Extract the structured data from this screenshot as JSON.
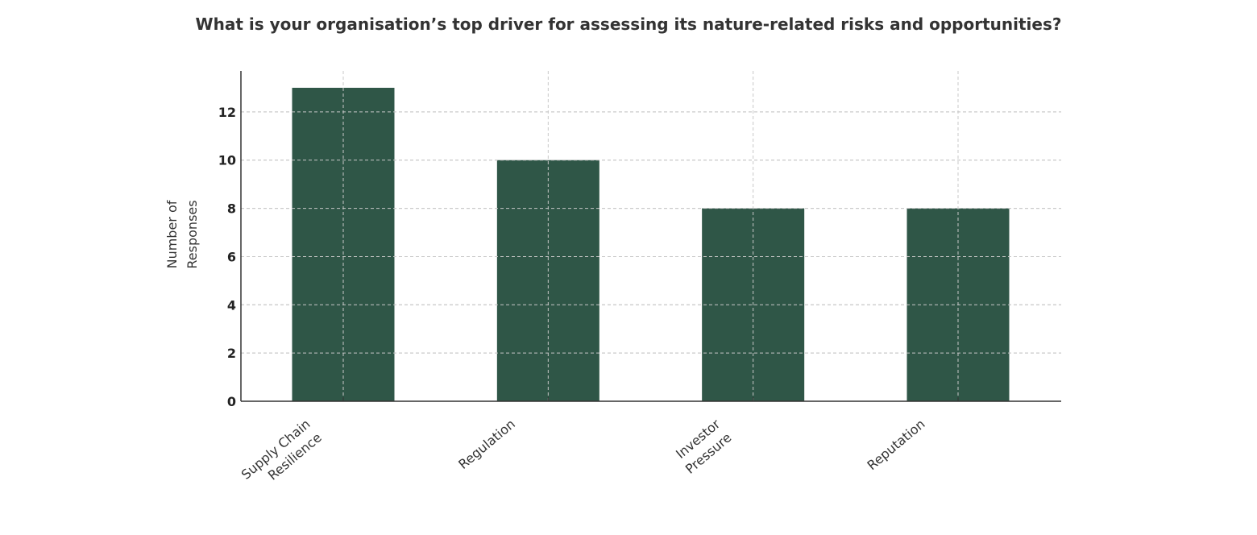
{
  "chart_data": {
    "type": "bar",
    "title": "What is your organisation’s top driver for assessing its nature-related risks and opportunities?",
    "xlabel": "",
    "ylabel": [
      "Number of",
      "Responses"
    ],
    "categories": [
      [
        "Supply Chain",
        "Resilience"
      ],
      [
        "Regulation"
      ],
      [
        "Investor",
        "Pressure"
      ],
      [
        "Reputation"
      ]
    ],
    "values": [
      13,
      10,
      8,
      8
    ],
    "ylim": [
      0,
      13.7
    ],
    "yticks": [
      0,
      2,
      4,
      6,
      8,
      10,
      12
    ],
    "grid": true,
    "bar_color": "#2f5647",
    "grid_color": "#c8c8c8",
    "axis_color": "#333333"
  }
}
